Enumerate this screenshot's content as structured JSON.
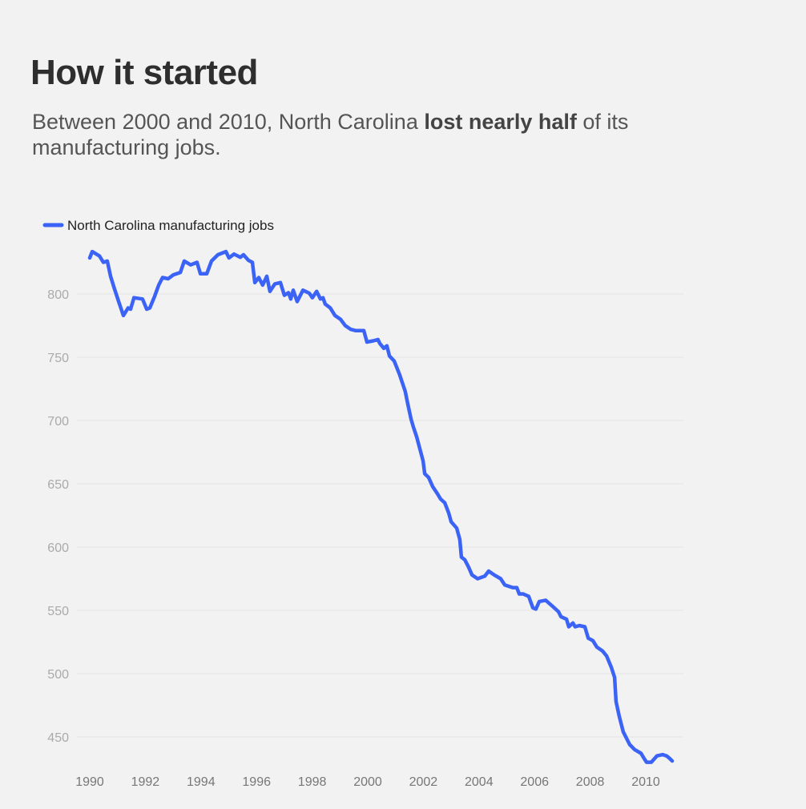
{
  "header": {
    "title": "How it started",
    "subtitle_before": "Between 2000 and 2010, North Carolina ",
    "subtitle_bold": "lost nearly half",
    "subtitle_after": " of its manufacturing jobs."
  },
  "chart_data": {
    "type": "line",
    "title": "",
    "xlabel": "",
    "ylabel": "",
    "xlim": [
      1990,
      2011
    ],
    "ylim": [
      428,
      836
    ],
    "x_ticks": [
      "1990",
      "1992",
      "1994",
      "1996",
      "1998",
      "2000",
      "2002",
      "2004",
      "2006",
      "2008",
      "2010"
    ],
    "y_ticks": [
      "450",
      "500",
      "550",
      "600",
      "650",
      "700",
      "750",
      "800"
    ],
    "grid": "horizontal",
    "legend": "top-left",
    "series": [
      {
        "name": "North Carolina manufacturing jobs",
        "color": "#3b63f5",
        "points": [
          [
            1990.0,
            828.5
          ],
          [
            1990.09,
            833.5
          ],
          [
            1990.35,
            830
          ],
          [
            1990.49,
            825
          ],
          [
            1990.63,
            826
          ],
          [
            1990.75,
            814
          ],
          [
            1990.89,
            804
          ],
          [
            1991.04,
            794
          ],
          [
            1991.21,
            783
          ],
          [
            1991.38,
            789
          ],
          [
            1991.47,
            788
          ],
          [
            1991.59,
            797
          ],
          [
            1991.9,
            796
          ],
          [
            1992.05,
            788
          ],
          [
            1992.16,
            789
          ],
          [
            1992.33,
            798
          ],
          [
            1992.48,
            807
          ],
          [
            1992.62,
            813
          ],
          [
            1992.82,
            812
          ],
          [
            1993.0,
            815
          ],
          [
            1993.26,
            817
          ],
          [
            1993.4,
            826
          ],
          [
            1993.63,
            823
          ],
          [
            1993.86,
            825
          ],
          [
            1993.98,
            816
          ],
          [
            1994.21,
            816
          ],
          [
            1994.38,
            826
          ],
          [
            1994.61,
            831
          ],
          [
            1994.9,
            833.5
          ],
          [
            1995.01,
            828.5
          ],
          [
            1995.19,
            831.5
          ],
          [
            1995.42,
            829
          ],
          [
            1995.53,
            831
          ],
          [
            1995.71,
            826.6
          ],
          [
            1995.85,
            825
          ],
          [
            1995.94,
            809
          ],
          [
            1996.08,
            813
          ],
          [
            1996.22,
            807
          ],
          [
            1996.37,
            814
          ],
          [
            1996.48,
            802
          ],
          [
            1996.66,
            808
          ],
          [
            1996.86,
            809
          ],
          [
            1997.0,
            799
          ],
          [
            1997.15,
            801
          ],
          [
            1997.23,
            796
          ],
          [
            1997.32,
            803
          ],
          [
            1997.46,
            794
          ],
          [
            1997.67,
            803
          ],
          [
            1997.9,
            800.6
          ],
          [
            1998.01,
            797
          ],
          [
            1998.16,
            802
          ],
          [
            1998.3,
            796
          ],
          [
            1998.39,
            797
          ],
          [
            1998.47,
            792
          ],
          [
            1998.65,
            789
          ],
          [
            1998.82,
            783
          ],
          [
            1999.02,
            780
          ],
          [
            1999.19,
            775
          ],
          [
            1999.39,
            772
          ],
          [
            1999.57,
            771
          ],
          [
            1999.86,
            771
          ],
          [
            1999.97,
            762
          ],
          [
            2000.2,
            763
          ],
          [
            2000.37,
            764
          ],
          [
            2000.43,
            761
          ],
          [
            2000.58,
            757
          ],
          [
            2000.69,
            759
          ],
          [
            2000.78,
            751
          ],
          [
            2000.95,
            747
          ],
          [
            2001.15,
            736
          ],
          [
            2001.35,
            723
          ],
          [
            2001.44,
            713
          ],
          [
            2001.56,
            701
          ],
          [
            2001.64,
            695
          ],
          [
            2001.76,
            687
          ],
          [
            2001.87,
            678
          ],
          [
            2001.99,
            668
          ],
          [
            2002.05,
            658
          ],
          [
            2002.19,
            655
          ],
          [
            2002.33,
            648
          ],
          [
            2002.51,
            642
          ],
          [
            2002.62,
            638
          ],
          [
            2002.77,
            635
          ],
          [
            2002.91,
            627
          ],
          [
            2003.0,
            620
          ],
          [
            2003.2,
            615
          ],
          [
            2003.31,
            606
          ],
          [
            2003.37,
            592
          ],
          [
            2003.49,
            590
          ],
          [
            2003.63,
            584
          ],
          [
            2003.75,
            578
          ],
          [
            2003.95,
            575
          ],
          [
            2004.21,
            577
          ],
          [
            2004.35,
            581
          ],
          [
            2004.55,
            578
          ],
          [
            2004.78,
            575
          ],
          [
            2004.93,
            570
          ],
          [
            2005.22,
            568
          ],
          [
            2005.36,
            568
          ],
          [
            2005.45,
            563
          ],
          [
            2005.59,
            563
          ],
          [
            2005.79,
            561
          ],
          [
            2005.94,
            552
          ],
          [
            2006.05,
            551
          ],
          [
            2006.17,
            557
          ],
          [
            2006.4,
            558
          ],
          [
            2006.66,
            553
          ],
          [
            2006.86,
            549
          ],
          [
            2006.95,
            545
          ],
          [
            2007.15,
            543
          ],
          [
            2007.23,
            537
          ],
          [
            2007.38,
            540
          ],
          [
            2007.46,
            537
          ],
          [
            2007.61,
            538
          ],
          [
            2007.81,
            537
          ],
          [
            2007.93,
            528
          ],
          [
            2008.1,
            526
          ],
          [
            2008.24,
            521
          ],
          [
            2008.44,
            518
          ],
          [
            2008.59,
            514
          ],
          [
            2008.76,
            505
          ],
          [
            2008.88,
            497
          ],
          [
            2008.93,
            478
          ],
          [
            2009.05,
            466
          ],
          [
            2009.19,
            454
          ],
          [
            2009.42,
            444
          ],
          [
            2009.6,
            440
          ],
          [
            2009.83,
            437
          ],
          [
            2009.94,
            433
          ],
          [
            2010.03,
            430
          ],
          [
            2010.2,
            430
          ],
          [
            2010.4,
            435
          ],
          [
            2010.61,
            436
          ],
          [
            2010.75,
            435
          ],
          [
            2010.86,
            433
          ],
          [
            2010.95,
            431
          ]
        ]
      }
    ]
  }
}
